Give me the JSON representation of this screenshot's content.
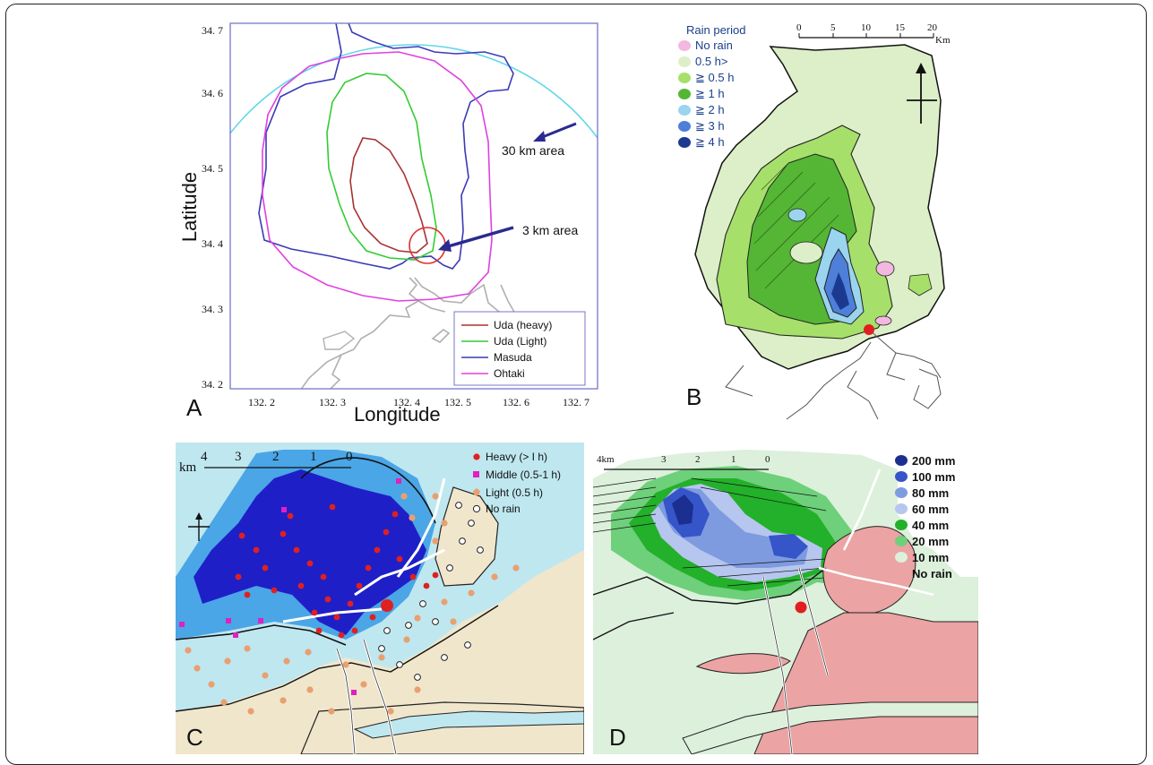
{
  "panels": {
    "a": {
      "label": "A",
      "xlabel": "Longitude",
      "ylabel": "Latitude",
      "xticks": [
        "132. 2",
        "132. 3",
        "132. 4",
        "132. 5",
        "132. 6",
        "132. 7"
      ],
      "yticks": [
        "34. 7",
        "34. 6",
        "34. 5",
        "34. 4",
        "34. 3",
        "34. 2"
      ],
      "annotations": {
        "thirty": "30 km area",
        "three": "3 km area"
      },
      "legend": [
        {
          "label": "Uda (heavy)",
          "color": "#a83232"
        },
        {
          "label": "Uda (Light)",
          "color": "#33cc33"
        },
        {
          "label": "Masuda",
          "color": "#3a3ab8"
        },
        {
          "label": "Ohtaki",
          "color": "#e040e0"
        }
      ]
    },
    "b": {
      "label": "B",
      "legend_title": "Rain period",
      "legend": [
        {
          "label": "No rain",
          "color": "#f2b8e0"
        },
        {
          "label": "0.5 h>",
          "color": "#dcefc8"
        },
        {
          "label": "≧ 0.5 h",
          "color": "#a6e06a"
        },
        {
          "label": "≧ 1 h",
          "color": "#55b535"
        },
        {
          "label": "≧ 2 h",
          "color": "#9ad4ee"
        },
        {
          "label": "≧ 3 h",
          "color": "#4e7fd9"
        },
        {
          "label": "≧ 4 h",
          "color": "#1b3a8f"
        }
      ],
      "scale": [
        "0",
        "5",
        "10",
        "15",
        "20"
      ],
      "scale_unit": "Km"
    },
    "c": {
      "label": "C",
      "scale_prefix": "km",
      "scale": [
        "4",
        "3",
        "2",
        "1",
        "0"
      ],
      "legend": [
        {
          "label": "Heavy (> I h)",
          "color": "#e02020",
          "symbol": "dot"
        },
        {
          "label": "Middle (0.5-1 h)",
          "color": "#e020c0",
          "symbol": "square"
        },
        {
          "label": "Light (0.5 h)",
          "color": "#e8a070",
          "symbol": "pentagon"
        },
        {
          "label": "No rain",
          "color": "#ffffff",
          "symbol": "ring"
        }
      ]
    },
    "d": {
      "label": "D",
      "scale": [
        "4km",
        "3",
        "2",
        "1",
        "0"
      ],
      "legend": [
        {
          "label": "200 mm",
          "color": "#1a2f8f"
        },
        {
          "label": "100 mm",
          "color": "#3555c8"
        },
        {
          "label": "80 mm",
          "color": "#7f9be0"
        },
        {
          "label": "60 mm",
          "color": "#b6c6ee"
        },
        {
          "label": "40 mm",
          "color": "#23b02a"
        },
        {
          "label": "20 mm",
          "color": "#6ed07a"
        },
        {
          "label": "10 mm",
          "color": "#dcf0dc"
        },
        {
          "label": "No rain",
          "color": "#eba3a3"
        }
      ]
    }
  }
}
